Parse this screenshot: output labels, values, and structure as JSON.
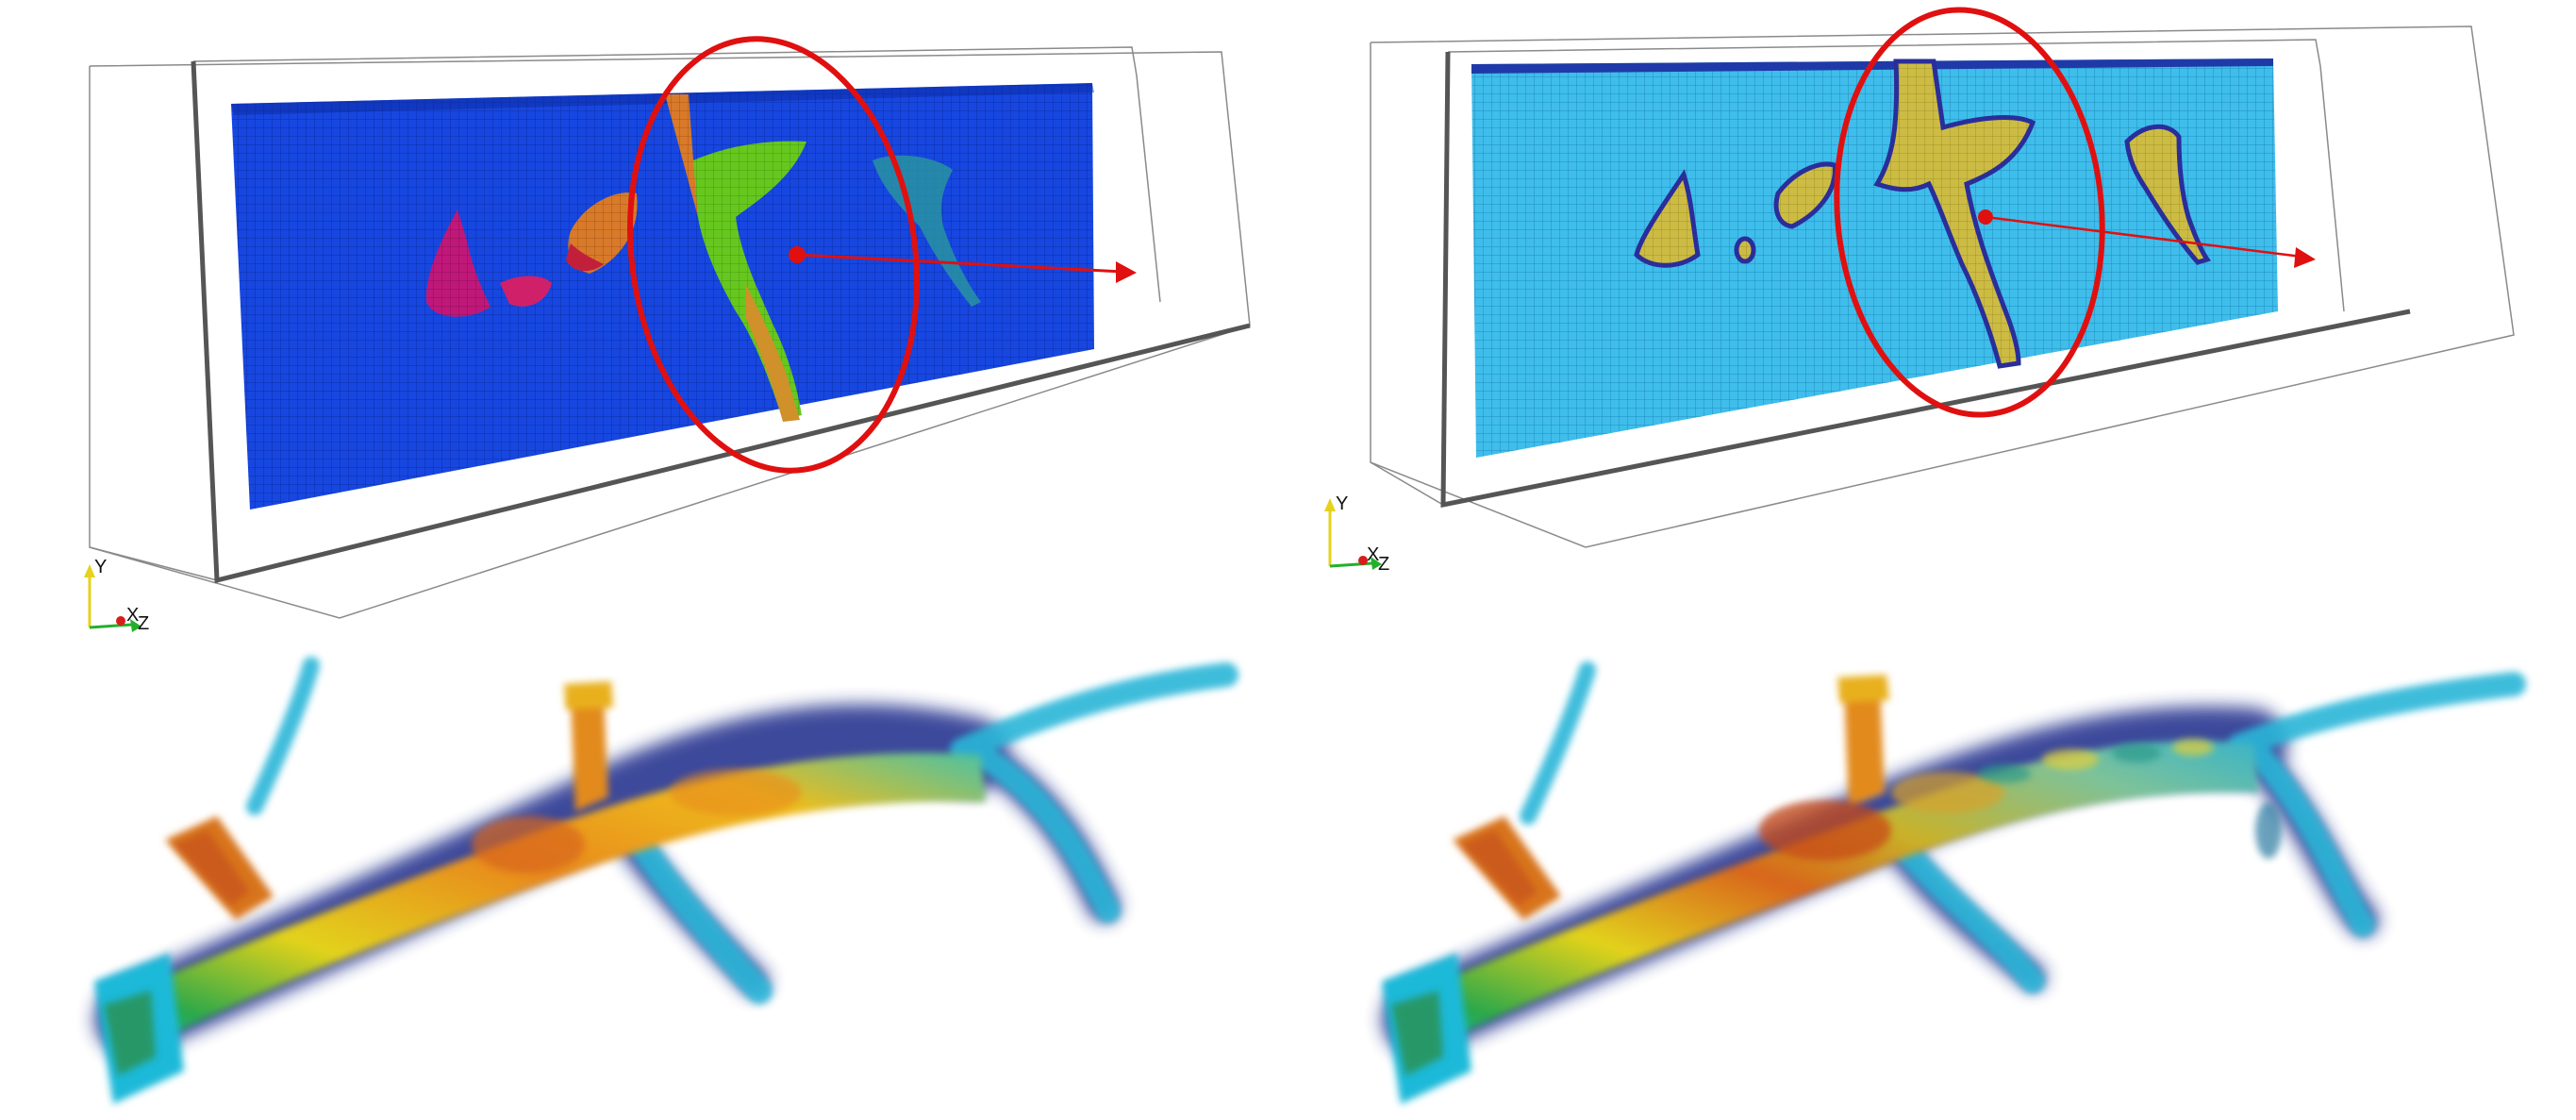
{
  "panels": {
    "top_left": {
      "axes": {
        "y": "Y",
        "x": "X",
        "z": "Z"
      }
    },
    "top_right": {
      "axes": {
        "y": "Y",
        "x": "X",
        "z": "Z"
      }
    },
    "bottom_left": {},
    "bottom_right": {}
  },
  "colors": {
    "background": "#ffffff",
    "highlight_circle": "#e01010",
    "probe_arrow": "#e01010",
    "tl_block": "#1343d8",
    "tr_block": "#36b8e6",
    "vessel_outer": "#2bb6d8",
    "vessel_mid": "#f2c21a",
    "vessel_core": "#e06a12",
    "axis_y": "#e6d21c",
    "axis_x": "#d81c1c",
    "axis_z": "#22b02a"
  }
}
